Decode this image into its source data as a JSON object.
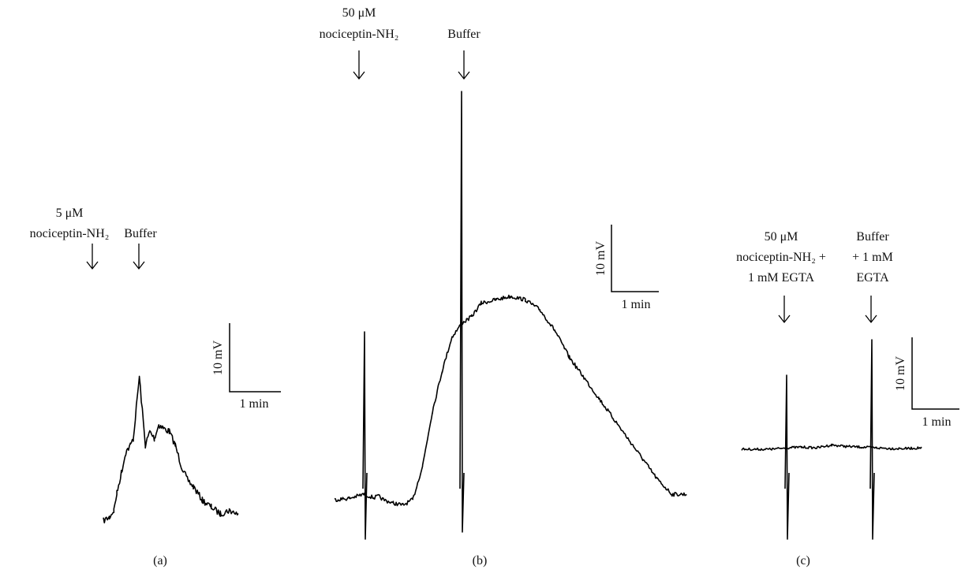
{
  "chart_data": [
    {
      "type": "line",
      "panel_label": "(a)",
      "annotations": [
        {
          "lines": [
            "5 μM",
            "nociceptin-NH₂"
          ]
        },
        {
          "lines": [
            "Buffer"
          ]
        }
      ],
      "scale_bar": {
        "vertical": "10 mV",
        "horizontal": "1 min"
      },
      "series": [
        {
          "x": [
            0,
            0.2,
            0.35,
            0.45,
            0.6,
            0.75,
            0.9,
            1.0,
            1.2,
            1.4,
            1.55,
            1.7,
            1.85,
            2.0,
            2.2,
            2.4,
            2.6,
            2.8,
            3.0,
            3.3,
            3.6,
            3.9,
            4.2,
            4.5
          ],
          "y": [
            -1,
            -0.5,
            0.5,
            3,
            6,
            9,
            10,
            11,
            20,
            10,
            12,
            11,
            13,
            12.5,
            12,
            10,
            7,
            5,
            4,
            2,
            1,
            0,
            0.5,
            0
          ]
        }
      ]
    },
    {
      "type": "line",
      "panel_label": "(b)",
      "annotations": [
        {
          "lines": [
            "50 μM",
            "nociceptin-NH₂"
          ]
        },
        {
          "lines": [
            "Buffer"
          ]
        }
      ],
      "scale_bar": {
        "vertical": "10 mV",
        "horizontal": "1 min"
      },
      "series": [
        {
          "x": [
            0,
            0.3,
            0.6,
            0.8,
            0.9,
            1.0,
            1.2,
            1.4,
            1.6,
            1.8,
            2.0,
            2.2,
            2.4,
            2.6,
            2.8,
            3.0,
            3.3,
            3.6,
            3.9,
            4.2,
            4.5,
            4.8,
            5.1,
            5.4,
            5.7,
            6.0,
            6.3,
            6.6,
            6.9,
            7.2
          ],
          "y": [
            0,
            0.2,
            0.8,
            0.3,
            0.5,
            0,
            -0.5,
            -0.8,
            0,
            5,
            13,
            19,
            24,
            26,
            27,
            29,
            29.5,
            30,
            29.5,
            28,
            25,
            21,
            18,
            15,
            12,
            9,
            6,
            3,
            0.8,
            0.8
          ]
        }
      ]
    },
    {
      "type": "line",
      "panel_label": "(c)",
      "annotations": [
        {
          "lines": [
            "50 μM",
            "nociceptin-NH₂ +",
            "1 mM EGTA"
          ]
        },
        {
          "lines": [
            "Buffer",
            "+ 1 mM",
            "EGTA"
          ]
        }
      ],
      "scale_bar": {
        "vertical": "10 mV",
        "horizontal": "1 min"
      },
      "series": [
        {
          "x": [
            0,
            0.5,
            1.0,
            1.5,
            2.0,
            2.5,
            3.0,
            3.5,
            4.0,
            4.5,
            5.0,
            5.5,
            6.0
          ],
          "y": [
            0,
            0,
            0,
            0.2,
            0.3,
            0.2,
            0.6,
            0.4,
            0.3,
            0.2,
            0.1,
            0.1,
            0.2
          ]
        }
      ]
    }
  ]
}
